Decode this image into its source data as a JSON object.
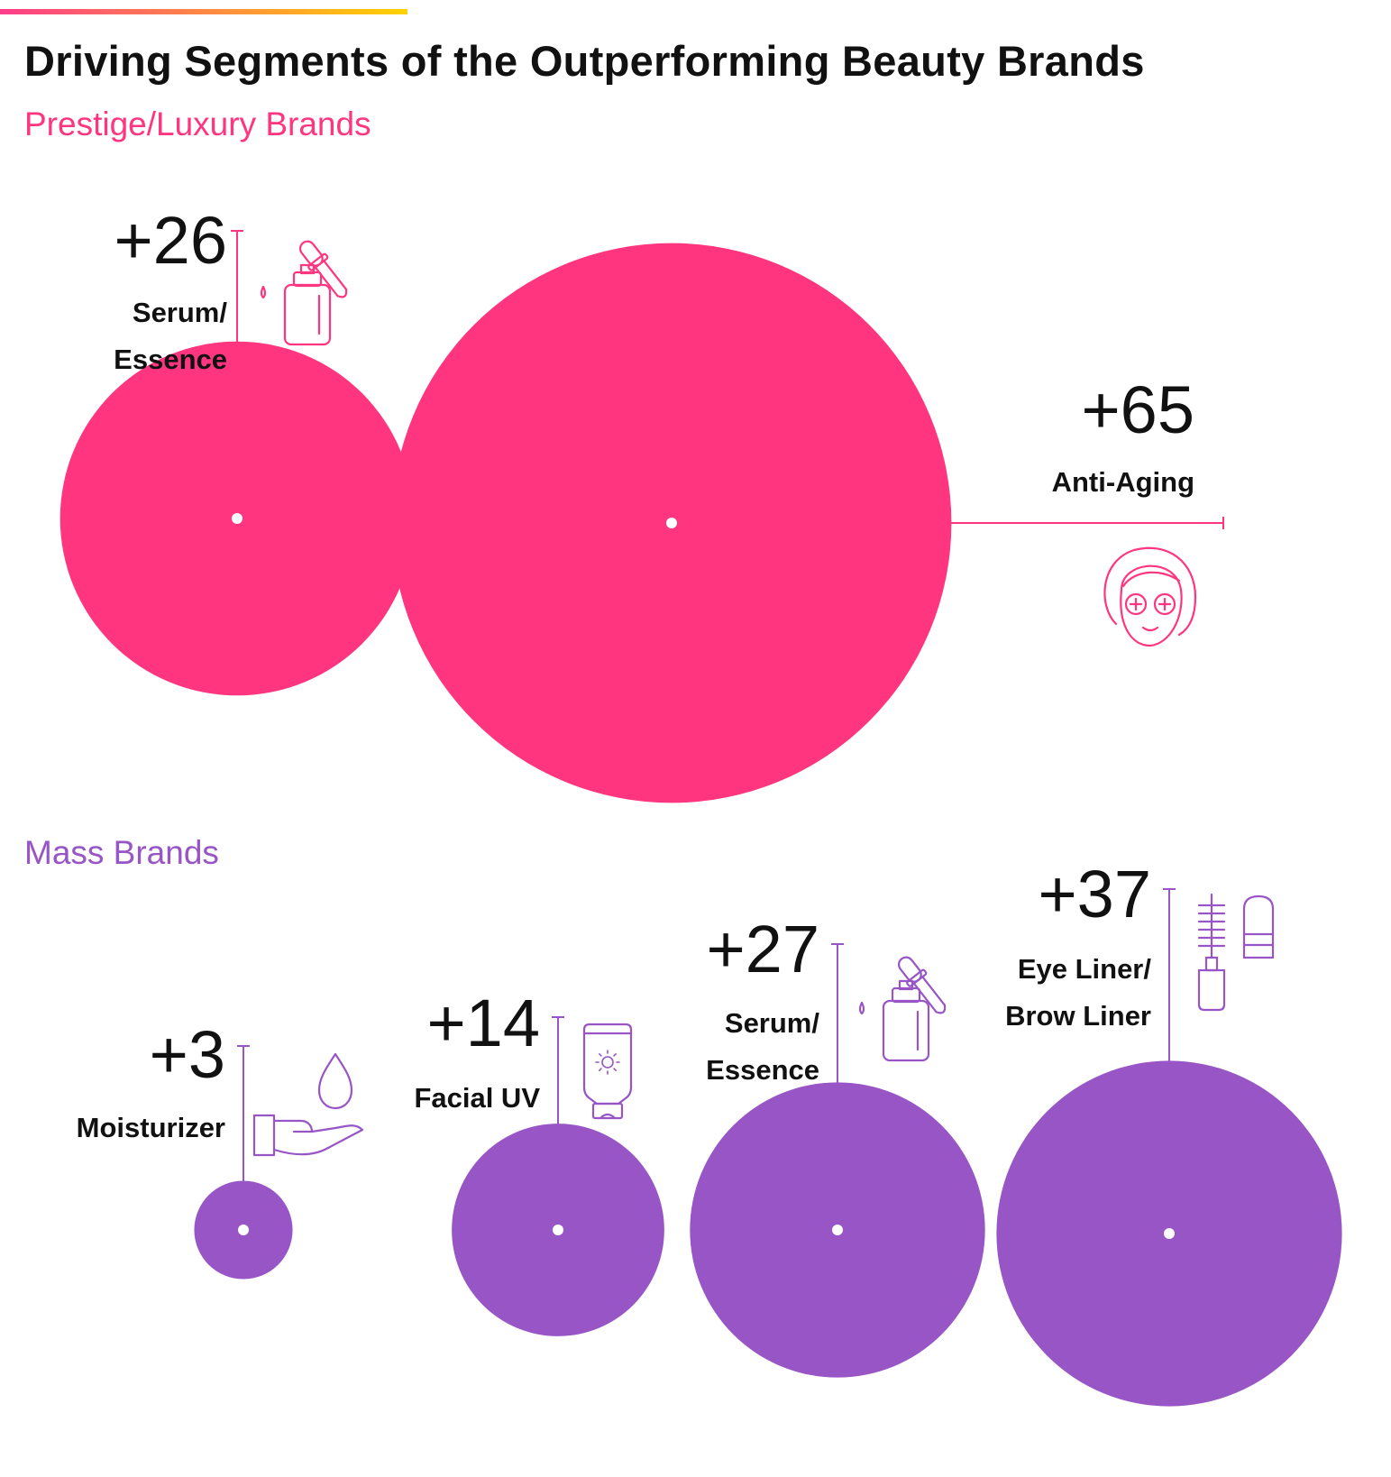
{
  "title": "Driving Segments of the Outperforming Beauty Brands",
  "colors": {
    "accent_gradient_start": "#ff3d8a",
    "accent_gradient_end": "#ffd200",
    "prestige": "#ff3580",
    "mass": "#9855c6"
  },
  "chart_data": [
    {
      "type": "bubble",
      "title": "Prestige/Luxury Brands",
      "color": "#ff3580",
      "series": [
        {
          "label": "Serum/\nEssence",
          "value": 26,
          "value_label": "+26",
          "icon": "serum-dropper-bottle-icon"
        },
        {
          "label": "Anti-Aging",
          "value": 65,
          "value_label": "+65",
          "icon": "face-mask-icon"
        }
      ]
    },
    {
      "type": "bubble",
      "title": "Mass Brands",
      "color": "#9855c6",
      "series": [
        {
          "label": "Moisturizer",
          "value": 3,
          "value_label": "+3",
          "icon": "hand-drop-icon"
        },
        {
          "label": "Facial UV",
          "value": 14,
          "value_label": "+14",
          "icon": "sunscreen-tube-icon"
        },
        {
          "label": "Serum/\nEssence",
          "value": 27,
          "value_label": "+27",
          "icon": "serum-dropper-bottle-icon"
        },
        {
          "label": "Eye Liner/\nBrow Liner",
          "value": 37,
          "value_label": "+37",
          "icon": "brow-liner-mascara-icon"
        }
      ]
    }
  ]
}
